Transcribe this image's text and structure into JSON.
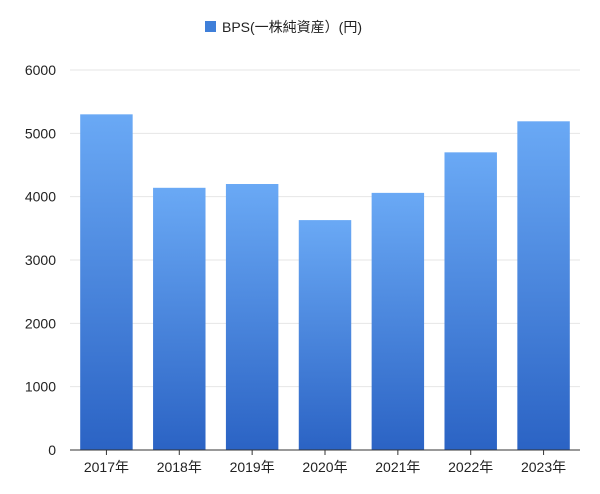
{
  "chart_data": {
    "type": "bar",
    "categories": [
      "2017年",
      "2018年",
      "2019年",
      "2020年",
      "2021年",
      "2022年",
      "2023年"
    ],
    "series": [
      {
        "name": "BPS(一株純資産）(円)",
        "values": [
          5300,
          4140,
          4200,
          3630,
          4060,
          4700,
          5190
        ]
      }
    ],
    "ylim": [
      0,
      6000
    ],
    "yticks": [
      0,
      1000,
      2000,
      3000,
      4000,
      5000,
      6000
    ],
    "grid": true,
    "legend_position": "top-center",
    "colors": {
      "bar_top": "#6aa9f5",
      "bar_bottom": "#2b63c4",
      "legend_swatch": "#3f7fd9"
    }
  }
}
